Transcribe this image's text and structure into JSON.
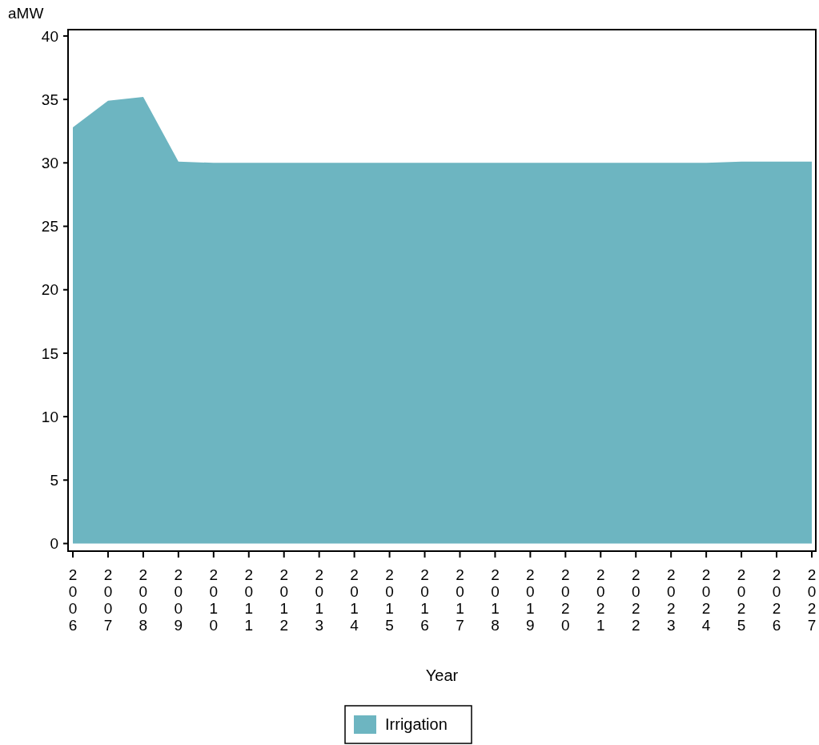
{
  "chart_data": {
    "type": "area",
    "xlabel": "Year",
    "ylabel": "aMW",
    "categories": [
      "2006",
      "2007",
      "2008",
      "2009",
      "2010",
      "2011",
      "2012",
      "2013",
      "2014",
      "2015",
      "2016",
      "2017",
      "2018",
      "2019",
      "2020",
      "2021",
      "2022",
      "2023",
      "2024",
      "2025",
      "2026",
      "2027"
    ],
    "series": [
      {
        "name": "Irrigation",
        "color": "#6db5c1",
        "values": [
          32.8,
          34.9,
          35.2,
          30.1,
          30.0,
          30.0,
          30.0,
          30.0,
          30.0,
          30.0,
          30.0,
          30.0,
          30.0,
          30.0,
          30.0,
          30.0,
          30.0,
          30.0,
          30.0,
          30.1,
          30.1,
          30.1
        ]
      }
    ],
    "ylim": [
      -0.6,
      40.5
    ],
    "yticks": [
      0,
      5,
      10,
      15,
      20,
      25,
      30,
      35,
      40
    ],
    "grid": false,
    "legend": "bottom"
  }
}
